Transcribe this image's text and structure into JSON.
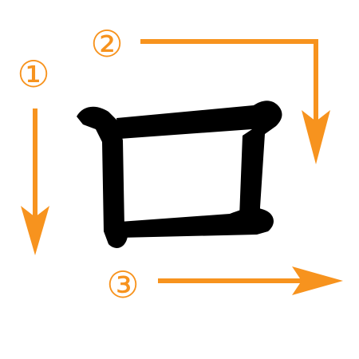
{
  "colors": {
    "background": "#ffffff",
    "character": "#000000",
    "stroke_order": "#f7931e"
  },
  "character": "口",
  "stroke_order": [
    {
      "label": "①",
      "direction": "down"
    },
    {
      "label": "②",
      "direction": "right-then-down"
    },
    {
      "label": "③",
      "direction": "right"
    }
  ]
}
